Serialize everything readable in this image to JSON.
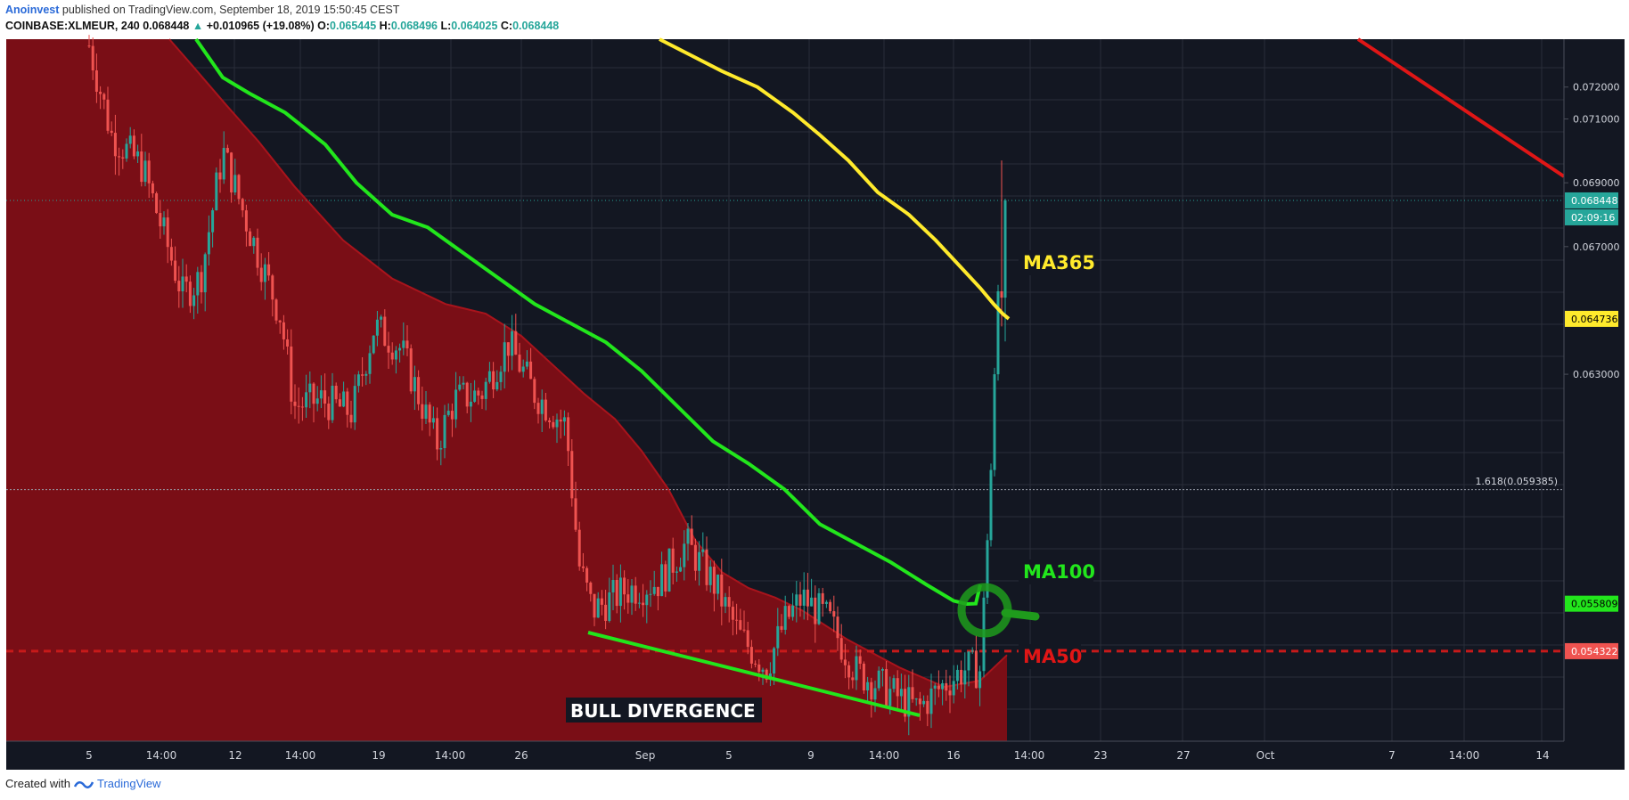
{
  "header": {
    "author": "Anoinvest",
    "published": " published on TradingView.com, September 18, 2019 15:50:45 CEST"
  },
  "symbol_line": {
    "symbol": "COINBASE:XLMEUR, 240",
    "last": "0.068448",
    "change": "+0.010965 (+19.08%)",
    "o_label": "O:",
    "o": "0.065445",
    "h_label": "H:",
    "h": "0.068496",
    "l_label": "L:",
    "l": "0.064025",
    "c_label": "C:",
    "c": "0.068448"
  },
  "footer": {
    "created": "Created with",
    "brand": "TradingView"
  },
  "colors": {
    "background": "#131722",
    "up": "#26a69a",
    "down": "#ef5350",
    "ma50_fill": "#7a0e16",
    "ma100": "#22e61c",
    "ma365": "#ffea2c",
    "trend_red": "#e01616",
    "support": "#c71a1a"
  },
  "chart_data": {
    "type": "candlestick",
    "ylim": [
      0.0515,
      0.0735
    ],
    "y_ticks": [
      "0.072000",
      "0.071000",
      "0.069000",
      "0.067000",
      "0.063000"
    ],
    "x_ticks": [
      "5",
      "14:00",
      "12",
      "14:00",
      "19",
      "14:00",
      "26",
      "Sep",
      "5",
      "9",
      "14:00",
      "16",
      "14:00",
      "23",
      "27",
      "Oct",
      "7",
      "14:00",
      "14"
    ],
    "price_badges": {
      "last": "0.068448",
      "countdown": "02:09:16",
      "ma365": "0.064736",
      "ma100": "0.055809",
      "support": "0.054322"
    },
    "fib_level": "1.618(0.059385)",
    "annotations": {
      "ma365": "MA365",
      "ma100": "MA100",
      "ma50": "MA50",
      "divergence": "BULL DIVERGENCE"
    },
    "series": [
      {
        "name": "MA365",
        "values": [
          0.0735,
          0.073,
          0.0725,
          0.072,
          0.0712,
          0.0705,
          0.0697,
          0.0687,
          0.068,
          0.0672,
          0.0663,
          0.0657,
          0.0652,
          0.0649,
          0.06474
        ]
      },
      {
        "name": "MA100",
        "values": [
          0.0735,
          0.0723,
          0.0718,
          0.0712,
          0.0702,
          0.069,
          0.068,
          0.0676,
          0.0668,
          0.066,
          0.0652,
          0.0646,
          0.064,
          0.0631,
          0.062,
          0.0609,
          0.0602,
          0.0594,
          0.0583,
          0.0577,
          0.0571,
          0.0564,
          0.0559,
          0.0558,
          0.05581,
          0.0564
        ]
      },
      {
        "name": "MA50",
        "values": [
          0.0735,
          0.0727,
          0.0714,
          0.0703,
          0.0689,
          0.0672,
          0.066,
          0.0652,
          0.0649,
          0.0642,
          0.0633,
          0.0624,
          0.0616,
          0.0606,
          0.0594,
          0.0578,
          0.0568,
          0.0563,
          0.056,
          0.0556,
          0.0547,
          0.0538,
          0.0532,
          0.0534,
          0.0542
        ]
      }
    ]
  }
}
